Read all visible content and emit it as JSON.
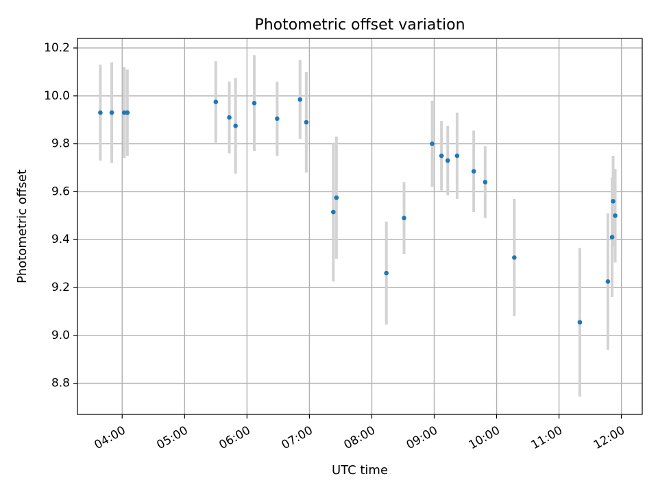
{
  "chart_data": {
    "type": "scatter",
    "title": "Photometric offset variation",
    "xlabel": "UTC time",
    "ylabel": "Photometric offset",
    "x_ticks": [
      "04:00",
      "05:00",
      "06:00",
      "07:00",
      "08:00",
      "09:00",
      "10:00",
      "11:00",
      "12:00"
    ],
    "y_ticks": [
      "8.8",
      "9.0",
      "9.2",
      "9.4",
      "9.6",
      "9.8",
      "10.0",
      "10.2"
    ],
    "xlim": [
      "03:17",
      "12:20"
    ],
    "ylim": [
      8.67,
      10.24
    ],
    "grid": true,
    "colors": {
      "point": "#1f77b4",
      "errorbar": "#d3d3d3",
      "grid": "#b0b0b0"
    },
    "points": [
      {
        "x": "03:39",
        "y": 9.93,
        "yerr": 0.2
      },
      {
        "x": "03:50",
        "y": 9.93,
        "yerr": 0.21
      },
      {
        "x": "04:02",
        "y": 9.93,
        "yerr": 0.19
      },
      {
        "x": "04:05",
        "y": 9.93,
        "yerr": 0.18
      },
      {
        "x": "05:30",
        "y": 9.975,
        "yerr": 0.17
      },
      {
        "x": "05:43",
        "y": 9.91,
        "yerr": 0.15
      },
      {
        "x": "05:49",
        "y": 9.875,
        "yerr": 0.2
      },
      {
        "x": "06:07",
        "y": 9.97,
        "yerr": 0.2
      },
      {
        "x": "06:29",
        "y": 9.905,
        "yerr": 0.155
      },
      {
        "x": "06:51",
        "y": 9.985,
        "yerr": 0.165
      },
      {
        "x": "06:57",
        "y": 9.89,
        "yerr": 0.21
      },
      {
        "x": "07:23",
        "y": 9.515,
        "yerr": 0.29
      },
      {
        "x": "07:26",
        "y": 9.575,
        "yerr": 0.255
      },
      {
        "x": "08:14",
        "y": 9.26,
        "yerr": 0.215
      },
      {
        "x": "08:31",
        "y": 9.49,
        "yerr": 0.15
      },
      {
        "x": "08:58",
        "y": 9.8,
        "yerr": 0.18
      },
      {
        "x": "09:07",
        "y": 9.75,
        "yerr": 0.145
      },
      {
        "x": "09:13",
        "y": 9.73,
        "yerr": 0.145
      },
      {
        "x": "09:22",
        "y": 9.75,
        "yerr": 0.18
      },
      {
        "x": "09:38",
        "y": 9.685,
        "yerr": 0.17
      },
      {
        "x": "09:49",
        "y": 9.64,
        "yerr": 0.15
      },
      {
        "x": "10:17",
        "y": 9.325,
        "yerr": 0.245
      },
      {
        "x": "11:20",
        "y": 9.055,
        "yerr": 0.31
      },
      {
        "x": "11:47",
        "y": 9.225,
        "yerr": 0.285
      },
      {
        "x": "11:51",
        "y": 9.41,
        "yerr": 0.25
      },
      {
        "x": "11:52",
        "y": 9.56,
        "yerr": 0.19
      },
      {
        "x": "11:54",
        "y": 9.5,
        "yerr": 0.195
      }
    ]
  }
}
